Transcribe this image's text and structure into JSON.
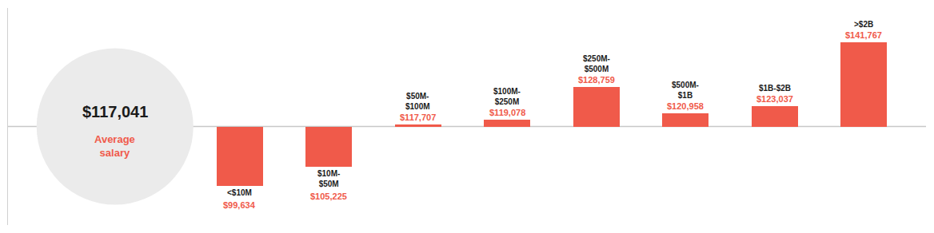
{
  "chart_data": {
    "type": "bar",
    "categories": [
      "<$10M",
      "$10M-\n$50M",
      "$50M-\n$100M",
      "$100M-\n$250M",
      "$250M-\n$500M",
      "$500M-\n$1B",
      "$1B-$2B",
      ">$2B"
    ],
    "values": [
      99634,
      105225,
      117707,
      119078,
      128759,
      120958,
      123037,
      141767
    ],
    "value_labels": [
      "$99,634",
      "$105,225",
      "$117,707",
      "$119,078",
      "$128,759",
      "$120,958",
      "$123,037",
      "$141,767"
    ],
    "data_labels": true,
    "color": "#F05A4A",
    "average": 117041,
    "average_label": "$117,041",
    "average_note": "Average\nsalary",
    "ylim": [
      88000,
      152000
    ],
    "tick_labels": false,
    "grid": false
  }
}
